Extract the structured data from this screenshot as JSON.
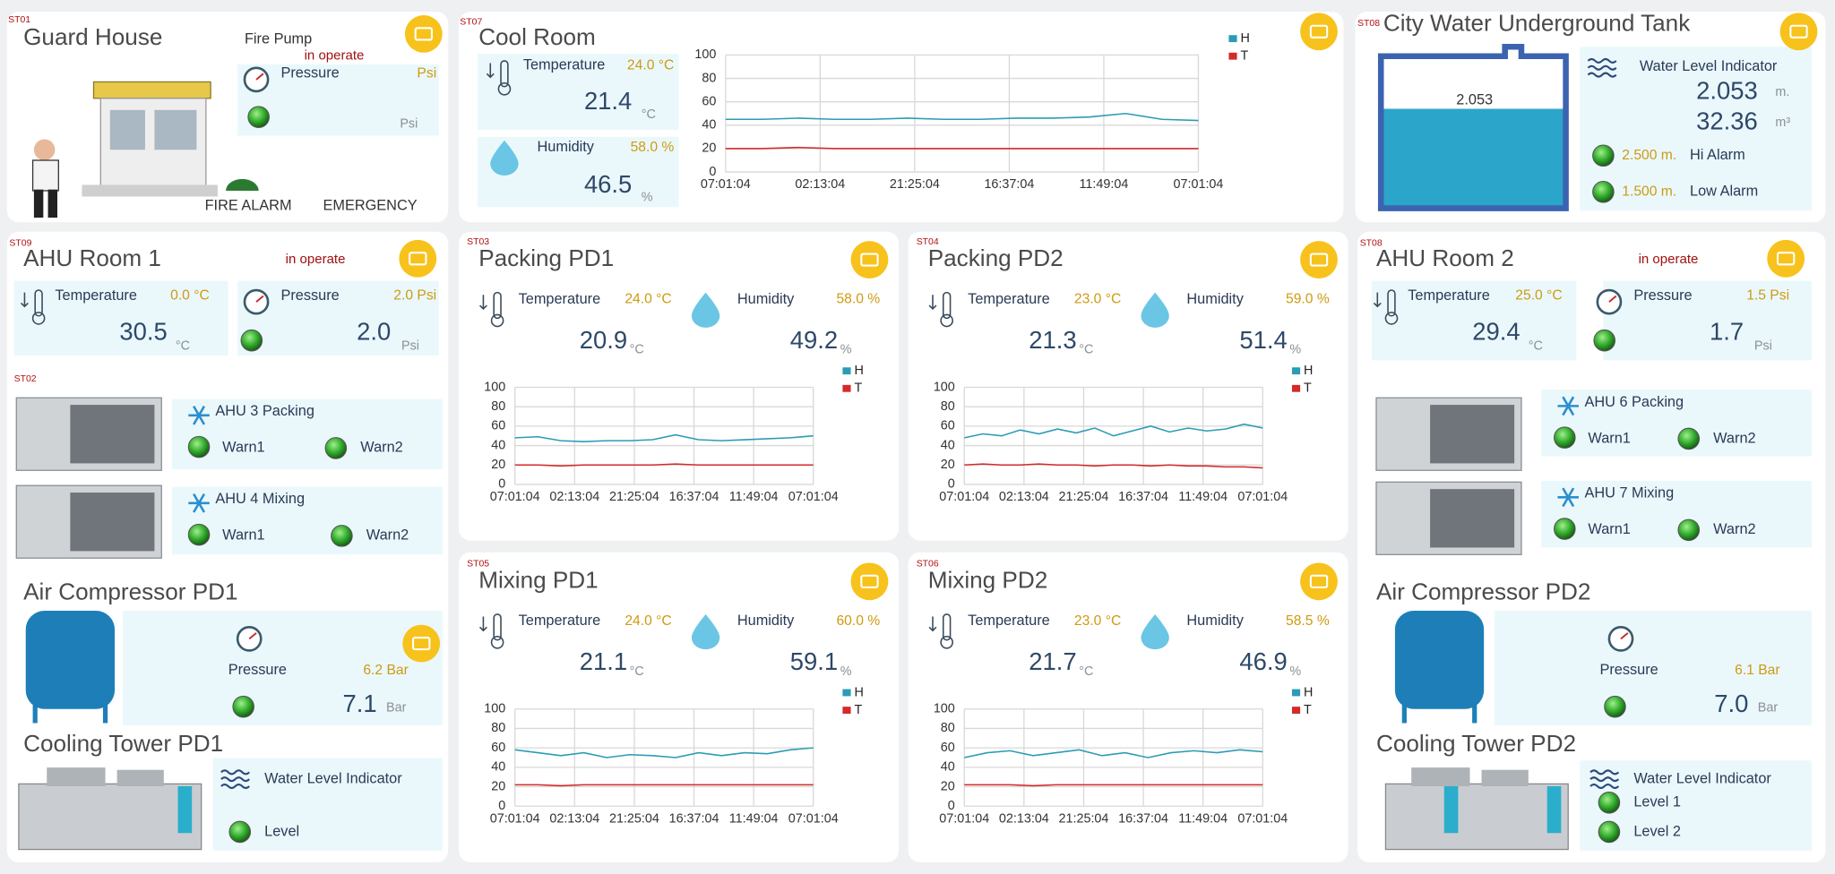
{
  "guard_house": {
    "code": "ST01",
    "title": "Guard House",
    "fire_pump": "Fire Pump",
    "status": "in operate",
    "pressure": {
      "label": "Pressure",
      "setpoint": "Psi",
      "unit": "Psi"
    },
    "fire_alarm": "FIRE ALARM",
    "emergency": "EMERGENCY"
  },
  "cool_room": {
    "code": "ST07",
    "title": "Cool Room",
    "temperature": {
      "label": "Temperature",
      "setpoint": "24.0 °C",
      "value": "21.4",
      "unit": "°C"
    },
    "humidity": {
      "label": "Humidity",
      "setpoint": "58.0 %",
      "value": "46.5",
      "unit": "%"
    },
    "chart": {
      "type": "line",
      "ylim": [
        0,
        100
      ],
      "yticks": [
        0,
        20,
        40,
        60,
        80,
        100
      ],
      "x_labels": [
        "07:01:04",
        "02:13:04",
        "21:25:04",
        "16:37:04",
        "11:49:04",
        "07:01:04"
      ],
      "series": [
        {
          "name": "H",
          "color": "#2b9cb5",
          "values": [
            45,
            45,
            46,
            45,
            45,
            46,
            45,
            45,
            46,
            46,
            47,
            50,
            45,
            44
          ]
        },
        {
          "name": "T",
          "color": "#d42a2a",
          "values": [
            20,
            20,
            21,
            20,
            20,
            20,
            20,
            20,
            20,
            20,
            20,
            20,
            20,
            20
          ]
        }
      ]
    }
  },
  "city_water": {
    "code": "ST08",
    "title": "City Water Underground Tank",
    "tank_level": "2.053",
    "indicator": "Water Level Indicator",
    "level": "2.053",
    "level_unit": "m.",
    "volume": "32.36",
    "volume_unit": "m³",
    "hi_alarm": {
      "value": "2.500 m.",
      "label": "Hi Alarm"
    },
    "low_alarm": {
      "value": "1.500 m.",
      "label": "Low Alarm"
    }
  },
  "ahu_room_1": {
    "code": "ST09",
    "title": "AHU Room 1",
    "status": "in operate",
    "temperature": {
      "label": "Temperature",
      "setpoint": "0.0 °C",
      "value": "30.5",
      "unit": "°C"
    },
    "pressure": {
      "label": "Pressure",
      "setpoint": "2.0 Psi",
      "value": "2.0",
      "unit": "Psi"
    }
  },
  "ahu_group_1": {
    "code": "ST02",
    "units": [
      {
        "name": "AHU 3 Packing",
        "warn1": "Warn1",
        "warn2": "Warn2"
      },
      {
        "name": "AHU 4 Mixing",
        "warn1": "Warn1",
        "warn2": "Warn2"
      }
    ]
  },
  "air_compressor_pd1": {
    "title": "Air Compressor PD1",
    "pressure": {
      "label": "Pressure",
      "setpoint": "6.2 Bar",
      "value": "7.1",
      "unit": "Bar"
    }
  },
  "cooling_tower_pd1": {
    "title": "Cooling Tower PD1",
    "indicator": "Water Level Indicator",
    "levels": [
      "Level"
    ]
  },
  "packing_pd1": {
    "code": "ST03",
    "title": "Packing PD1",
    "temperature": {
      "label": "Temperature",
      "setpoint": "24.0 °C",
      "value": "20.9",
      "unit": "°C"
    },
    "humidity": {
      "label": "Humidity",
      "setpoint": "58.0 %",
      "value": "49.2",
      "unit": "%"
    },
    "chart": {
      "type": "line",
      "ylim": [
        0,
        100
      ],
      "yticks": [
        0,
        20,
        40,
        60,
        80,
        100
      ],
      "x_labels": [
        "07:01:04",
        "02:13:04",
        "21:25:04",
        "16:37:04",
        "11:49:04",
        "07:01:04"
      ],
      "series": [
        {
          "name": "H",
          "color": "#2b9cb5",
          "values": [
            48,
            49,
            45,
            44,
            45,
            45,
            46,
            51,
            46,
            45,
            46,
            47,
            48,
            50
          ]
        },
        {
          "name": "T",
          "color": "#d42a2a",
          "values": [
            20,
            20,
            19,
            20,
            20,
            20,
            20,
            21,
            20,
            20,
            20,
            20,
            20,
            20
          ]
        }
      ]
    }
  },
  "packing_pd2": {
    "code": "ST04",
    "title": "Packing PD2",
    "temperature": {
      "label": "Temperature",
      "setpoint": "23.0 °C",
      "value": "21.3",
      "unit": "°C"
    },
    "humidity": {
      "label": "Humidity",
      "setpoint": "59.0 %",
      "value": "51.4",
      "unit": "%"
    },
    "chart": {
      "type": "line",
      "ylim": [
        0,
        100
      ],
      "yticks": [
        0,
        20,
        40,
        60,
        80,
        100
      ],
      "x_labels": [
        "07:01:04",
        "02:13:04",
        "21:25:04",
        "16:37:04",
        "11:49:04",
        "07:01:04"
      ],
      "series": [
        {
          "name": "H",
          "color": "#2b9cb5",
          "values": [
            48,
            52,
            50,
            56,
            52,
            57,
            53,
            58,
            50,
            55,
            60,
            54,
            58,
            55,
            57,
            62,
            58
          ]
        },
        {
          "name": "T",
          "color": "#d42a2a",
          "values": [
            20,
            21,
            20,
            20,
            21,
            20,
            20,
            19,
            20,
            20,
            19,
            20,
            19,
            19,
            18,
            18,
            17
          ]
        }
      ]
    }
  },
  "mixing_pd1": {
    "code": "ST05",
    "title": "Mixing PD1",
    "temperature": {
      "label": "Temperature",
      "setpoint": "24.0 °C",
      "value": "21.1",
      "unit": "°C"
    },
    "humidity": {
      "label": "Humidity",
      "setpoint": "60.0 %",
      "value": "59.1",
      "unit": "%"
    },
    "chart": {
      "type": "line",
      "ylim": [
        0,
        100
      ],
      "yticks": [
        0,
        20,
        40,
        60,
        80,
        100
      ],
      "x_labels": [
        "07:01:04",
        "02:13:04",
        "21:25:04",
        "16:37:04",
        "11:49:04",
        "07:01:04"
      ],
      "series": [
        {
          "name": "H",
          "color": "#2b9cb5",
          "values": [
            58,
            55,
            52,
            55,
            50,
            53,
            52,
            50,
            55,
            52,
            55,
            54,
            58,
            60
          ]
        },
        {
          "name": "T",
          "color": "#d42a2a",
          "values": [
            22,
            22,
            21,
            22,
            22,
            22,
            22,
            22,
            22,
            22,
            22,
            22,
            22,
            22
          ]
        }
      ]
    }
  },
  "mixing_pd2": {
    "code": "ST06",
    "title": "Mixing PD2",
    "temperature": {
      "label": "Temperature",
      "setpoint": "23.0 °C",
      "value": "21.7",
      "unit": "°C"
    },
    "humidity": {
      "label": "Humidity",
      "setpoint": "58.5 %",
      "value": "46.9",
      "unit": "%"
    },
    "chart": {
      "type": "line",
      "ylim": [
        0,
        100
      ],
      "yticks": [
        0,
        20,
        40,
        60,
        80,
        100
      ],
      "x_labels": [
        "07:01:04",
        "02:13:04",
        "21:25:04",
        "16:37:04",
        "11:49:04",
        "07:01:04"
      ],
      "series": [
        {
          "name": "H",
          "color": "#2b9cb5",
          "values": [
            50,
            55,
            57,
            52,
            55,
            58,
            52,
            55,
            50,
            55,
            57,
            55,
            58,
            56
          ]
        },
        {
          "name": "T",
          "color": "#d42a2a",
          "values": [
            22,
            22,
            22,
            21,
            22,
            22,
            22,
            22,
            22,
            22,
            22,
            22,
            22,
            22
          ]
        }
      ]
    }
  },
  "ahu_room_2": {
    "code": "ST08",
    "title": "AHU Room 2",
    "status": "in operate",
    "temperature": {
      "label": "Temperature",
      "setpoint": "25.0 °C",
      "value": "29.4",
      "unit": "°C"
    },
    "pressure": {
      "label": "Pressure",
      "setpoint": "1.5 Psi",
      "value": "1.7",
      "unit": "Psi"
    }
  },
  "ahu_group_2": {
    "units": [
      {
        "name": "AHU 6 Packing",
        "warn1": "Warn1",
        "warn2": "Warn2"
      },
      {
        "name": "AHU 7 Mixing",
        "warn1": "Warn1",
        "warn2": "Warn2"
      }
    ]
  },
  "air_compressor_pd2": {
    "title": "Air Compressor PD2",
    "pressure": {
      "label": "Pressure",
      "setpoint": "6.1 Bar",
      "value": "7.0",
      "unit": "Bar"
    }
  },
  "cooling_tower_pd2": {
    "title": "Cooling Tower PD2",
    "indicator": "Water Level Indicator",
    "levels": [
      "Level 1",
      "Level 2"
    ]
  }
}
